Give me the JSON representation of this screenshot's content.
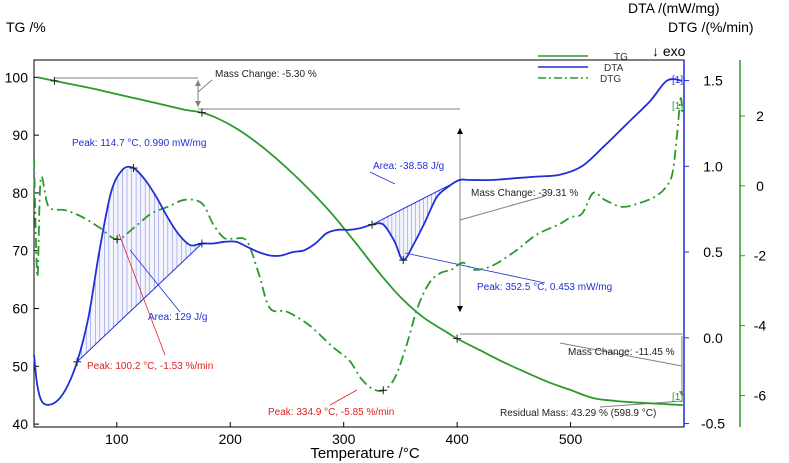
{
  "chart_data": {
    "type": "line",
    "title": "",
    "xlabel": "Temperature /°C",
    "ylabel_left": "TG /%",
    "ylabel_right_1": "DTA /(mW/mg)",
    "ylabel_right_1_note": "↓ exo",
    "ylabel_right_2": "DTG /(%/min)",
    "xlim": [
      27,
      600
    ],
    "ylim_tg": [
      39.5,
      103
    ],
    "ylim_dta": [
      -0.52,
      1.62
    ],
    "ylim_dtg": [
      -6.9,
      3.6
    ],
    "x_ticks": [
      "100",
      "200",
      "300",
      "400",
      "500"
    ],
    "tg_ticks": [
      "40",
      "50",
      "60",
      "70",
      "80",
      "90",
      "100"
    ],
    "dta_ticks": [
      "-0.5",
      "0.0",
      "0.5",
      "1.0",
      "1.5"
    ],
    "dtg_ticks": [
      "-6",
      "-4",
      "-2",
      "0",
      "2"
    ],
    "legend": [
      {
        "name": "TG",
        "color": "#2a9a2a",
        "style": "solid"
      },
      {
        "name": "DTA",
        "color": "#1f2fd8",
        "style": "solid"
      },
      {
        "name": "DTG",
        "color": "#2a9a2a",
        "style": "dash-dot"
      }
    ],
    "colors": {
      "tg": "#2a9a2a",
      "dta": "#1f2fd8",
      "dtg": "#2a9a2a",
      "axis_dta": "#1f2fd8",
      "axis_dtg": "#2a9a2a",
      "gray": "#808080",
      "red": "#e02020"
    },
    "series": [
      {
        "name": "TG",
        "axis": "tg",
        "x": [
          30,
          45,
          60,
          80,
          100,
          120,
          140,
          160,
          175,
          190,
          210,
          230,
          250,
          270,
          290,
          310,
          330,
          350,
          370,
          390,
          400,
          420,
          440,
          460,
          480,
          500,
          520,
          540,
          560,
          580,
          598.9
        ],
        "y": [
          100.0,
          99.4,
          98.8,
          98.0,
          97.1,
          96.2,
          95.3,
          94.4,
          93.9,
          92.8,
          90.6,
          87.7,
          84.3,
          80.5,
          76.3,
          71.5,
          66.5,
          62.0,
          58.5,
          56.0,
          54.8,
          52.8,
          50.8,
          49.0,
          47.3,
          45.9,
          44.5,
          44.0,
          43.7,
          43.5,
          43.29
        ]
      },
      {
        "name": "DTA",
        "axis": "dta",
        "x": [
          27,
          30,
          35,
          45,
          55,
          65,
          75,
          85,
          95,
          105,
          114.7,
          125,
          135,
          145,
          155,
          165,
          175,
          185,
          195,
          205,
          215,
          225,
          235,
          245,
          255,
          265,
          275,
          285,
          295,
          305,
          315,
          325,
          335,
          345,
          352.5,
          362,
          372,
          382,
          392,
          402,
          412,
          430,
          450,
          470,
          490,
          510,
          530,
          550,
          570,
          585,
          598
        ],
        "y": [
          -0.1,
          -0.28,
          -0.38,
          -0.38,
          -0.3,
          -0.14,
          0.12,
          0.52,
          0.85,
          0.98,
          0.99,
          0.92,
          0.82,
          0.7,
          0.6,
          0.54,
          0.55,
          0.55,
          0.56,
          0.56,
          0.53,
          0.5,
          0.48,
          0.48,
          0.5,
          0.51,
          0.55,
          0.61,
          0.63,
          0.63,
          0.64,
          0.66,
          0.66,
          0.56,
          0.453,
          0.55,
          0.68,
          0.82,
          0.88,
          0.92,
          0.92,
          0.92,
          0.93,
          0.94,
          0.95,
          1.0,
          1.12,
          1.25,
          1.38,
          1.5,
          1.5
        ]
      },
      {
        "name": "DTG",
        "axis": "dtg",
        "x": [
          27,
          30,
          33,
          40,
          55,
          70,
          85,
          100.2,
          115,
          130,
          145,
          160,
          175,
          185,
          195,
          205,
          215,
          225,
          235,
          250,
          270,
          290,
          305,
          315,
          325,
          334.9,
          345,
          355,
          365,
          375,
          385,
          395,
          405,
          415,
          430,
          450,
          470,
          490,
          500,
          510,
          520,
          530,
          545,
          560,
          575,
          585,
          590,
          594,
          597,
          599
        ],
        "y": [
          0.8,
          -2.6,
          0.2,
          -0.6,
          -0.7,
          -0.9,
          -1.2,
          -1.53,
          -1.2,
          -0.8,
          -0.6,
          -0.4,
          -0.5,
          -1.1,
          -1.5,
          -1.5,
          -1.6,
          -2.5,
          -3.5,
          -3.6,
          -4.0,
          -4.6,
          -5.0,
          -5.5,
          -5.8,
          -5.85,
          -5.5,
          -4.6,
          -3.5,
          -2.8,
          -2.5,
          -2.4,
          -2.2,
          -2.4,
          -2.3,
          -1.9,
          -1.4,
          -1.1,
          -0.9,
          -0.8,
          -0.2,
          -0.4,
          -0.6,
          -0.5,
          -0.3,
          0.0,
          0.4,
          1.5,
          2.5,
          2.0
        ]
      }
    ],
    "annotations": {
      "mass_change_1": "Mass Change: -5.30 %",
      "mass_change_2": "Mass Change: -39.31 %",
      "mass_change_3": "Mass Change: -11.45 %",
      "residual_mass": "Residual Mass: 43.29 % (598.9 °C)",
      "peak_dta_1": "Peak: 114.7 °C, 0.990 mW/mg",
      "peak_dta_2": "Peak: 352.5 °C, 0.453 mW/mg",
      "area_1": "Area: 129 J/g",
      "area_2": "Area: -38.58 J/g",
      "peak_dtg_1": "Peak: 100.2 °C, -1.53 %/min",
      "peak_dtg_2": "Peak: 334.9 °C, -5.85 %/min",
      "marker": "[1]"
    }
  }
}
